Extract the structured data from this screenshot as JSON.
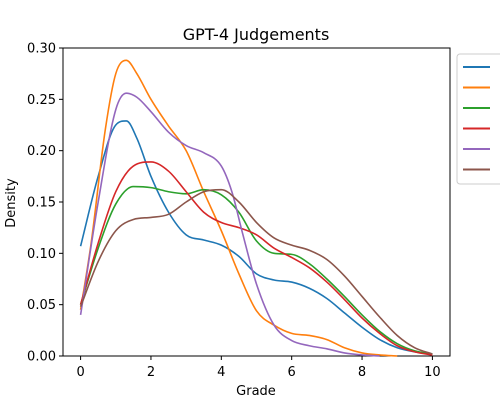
{
  "chart_data": {
    "type": "line",
    "title": "GPT-4 Judgements",
    "xlabel": "Grade",
    "ylabel": "Density",
    "xlim": [
      -0.5,
      10.5
    ],
    "ylim": [
      0,
      0.3
    ],
    "xticks": [
      0,
      2,
      4,
      6,
      8,
      10
    ],
    "yticks": [
      0.0,
      0.05,
      0.1,
      0.15,
      0.2,
      0.25,
      0.3
    ],
    "xtick_labels": [
      "0",
      "2",
      "4",
      "6",
      "8",
      "10"
    ],
    "ytick_labels": [
      "0.00",
      "0.05",
      "0.10",
      "0.15",
      "0.20",
      "0.25",
      "0.30"
    ],
    "grid": false,
    "legend": {
      "position": "outside-right",
      "entries": [
        "",
        "",
        "",
        "",
        "",
        ""
      ]
    },
    "series": [
      {
        "color": "#1f77b4",
        "x": [
          0,
          0.5,
          1,
          1.3,
          1.6,
          2,
          2.5,
          3,
          3.5,
          4,
          4.5,
          5,
          5.5,
          6,
          6.5,
          7,
          7.5,
          8,
          8.5,
          9,
          9.5,
          10
        ],
        "y": [
          0.107,
          0.175,
          0.225,
          0.229,
          0.212,
          0.175,
          0.14,
          0.118,
          0.113,
          0.108,
          0.097,
          0.08,
          0.074,
          0.072,
          0.066,
          0.056,
          0.042,
          0.028,
          0.016,
          0.008,
          0.004,
          0.002
        ]
      },
      {
        "color": "#ff7f0e",
        "x": [
          0,
          0.3,
          0.7,
          1,
          1.3,
          1.6,
          2,
          2.5,
          3,
          3.5,
          4,
          4.5,
          5,
          5.5,
          6,
          6.5,
          7,
          7.5,
          8,
          8.5,
          9
        ],
        "y": [
          0.045,
          0.11,
          0.22,
          0.275,
          0.288,
          0.275,
          0.25,
          0.224,
          0.2,
          0.16,
          0.122,
          0.08,
          0.044,
          0.03,
          0.022,
          0.02,
          0.016,
          0.008,
          0.003,
          0.001,
          0.0
        ]
      },
      {
        "color": "#2ca02c",
        "x": [
          0,
          0.5,
          1,
          1.5,
          2,
          2.5,
          3,
          3.5,
          4,
          4.5,
          5,
          5.5,
          6,
          6.5,
          7,
          7.5,
          8,
          8.5,
          9,
          9.5,
          10
        ],
        "y": [
          0.05,
          0.105,
          0.148,
          0.165,
          0.164,
          0.16,
          0.158,
          0.162,
          0.157,
          0.14,
          0.112,
          0.1,
          0.099,
          0.09,
          0.075,
          0.058,
          0.04,
          0.024,
          0.012,
          0.005,
          0.002
        ]
      },
      {
        "color": "#d62728",
        "x": [
          0,
          0.5,
          1,
          1.5,
          2,
          2.5,
          3,
          3.5,
          4,
          4.5,
          5,
          5.5,
          6,
          6.5,
          7,
          7.5,
          8,
          8.5,
          9,
          9.5,
          10
        ],
        "y": [
          0.05,
          0.11,
          0.16,
          0.185,
          0.189,
          0.18,
          0.16,
          0.14,
          0.13,
          0.125,
          0.118,
          0.105,
          0.096,
          0.086,
          0.072,
          0.055,
          0.037,
          0.022,
          0.01,
          0.004,
          0.001
        ]
      },
      {
        "color": "#9467bd",
        "x": [
          0,
          0.5,
          1,
          1.3,
          1.6,
          2,
          2.5,
          3,
          3.5,
          4,
          4.3,
          4.6,
          5,
          5.5,
          6,
          6.5,
          7,
          7.5,
          8,
          8.5
        ],
        "y": [
          0.04,
          0.15,
          0.24,
          0.256,
          0.252,
          0.238,
          0.218,
          0.205,
          0.198,
          0.185,
          0.16,
          0.12,
          0.07,
          0.03,
          0.015,
          0.01,
          0.007,
          0.003,
          0.001,
          0.0
        ]
      },
      {
        "color": "#8c564b",
        "x": [
          0,
          0.5,
          1,
          1.5,
          2,
          2.5,
          3,
          3.5,
          4,
          4.5,
          5,
          5.5,
          6,
          6.5,
          7,
          7.5,
          8,
          8.5,
          9,
          9.5,
          10
        ],
        "y": [
          0.048,
          0.092,
          0.122,
          0.133,
          0.135,
          0.138,
          0.15,
          0.16,
          0.162,
          0.15,
          0.13,
          0.115,
          0.108,
          0.103,
          0.094,
          0.078,
          0.058,
          0.038,
          0.02,
          0.008,
          0.002
        ]
      }
    ]
  }
}
